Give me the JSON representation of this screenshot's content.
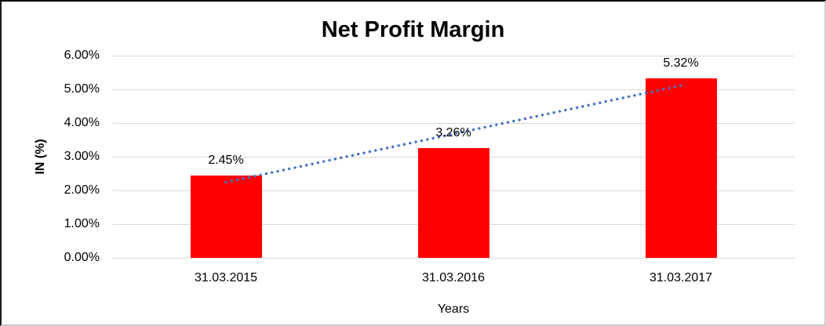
{
  "chart_data": {
    "type": "bar",
    "title": "Net Profit Margin",
    "xlabel": "Years",
    "ylabel": "IN (%)",
    "categories": [
      "31.03.2015",
      "31.03.2016",
      "31.03.2017"
    ],
    "values": [
      2.45,
      3.26,
      5.32
    ],
    "data_labels": [
      "2.45%",
      "3.26%",
      "5.32%"
    ],
    "ylim": [
      0,
      6
    ],
    "ytick_step": 1,
    "ytick_labels": [
      "0.00%",
      "1.00%",
      "2.00%",
      "3.00%",
      "4.00%",
      "5.00%",
      "6.00%"
    ],
    "grid": true,
    "legend_position": "none",
    "bar_color": "#ff0000",
    "gridline_color": "#d9d9d9",
    "trendline": {
      "type": "linear",
      "style": "dotted",
      "color": "#4472c4"
    }
  }
}
